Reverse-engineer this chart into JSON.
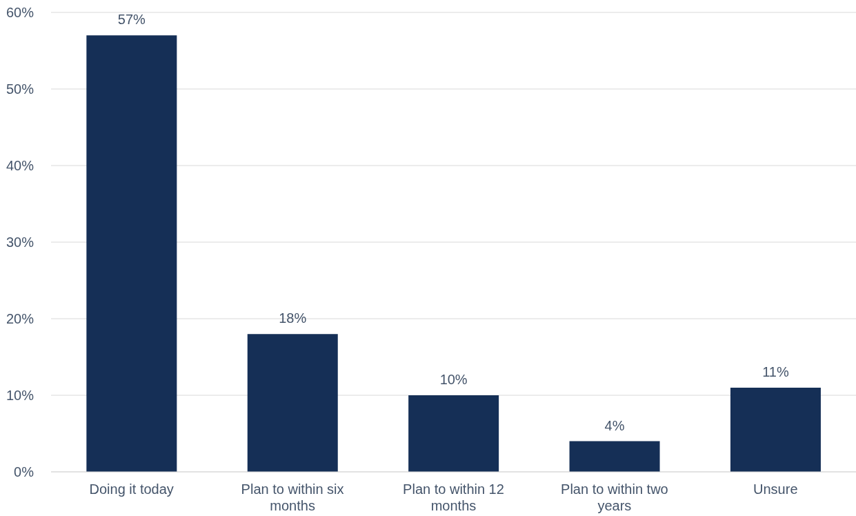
{
  "chart_data": {
    "type": "bar",
    "categories": [
      "Doing it today",
      "Plan to within six months",
      "Plan to within 12 months",
      "Plan to within two years",
      "Unsure"
    ],
    "values": [
      57,
      18,
      10,
      4,
      11
    ],
    "value_labels": [
      "57%",
      "18%",
      "10%",
      "4%",
      "11%"
    ],
    "color": "#152f56",
    "ylim": [
      0,
      60
    ],
    "yticks": [
      {
        "value": 0,
        "label": "0%"
      },
      {
        "value": 10,
        "label": "10%"
      },
      {
        "value": 20,
        "label": "20%"
      },
      {
        "value": 30,
        "label": "30%"
      },
      {
        "value": 40,
        "label": "40%"
      },
      {
        "value": 50,
        "label": "50%"
      },
      {
        "value": 60,
        "label": "60%"
      }
    ],
    "grid": "y"
  }
}
